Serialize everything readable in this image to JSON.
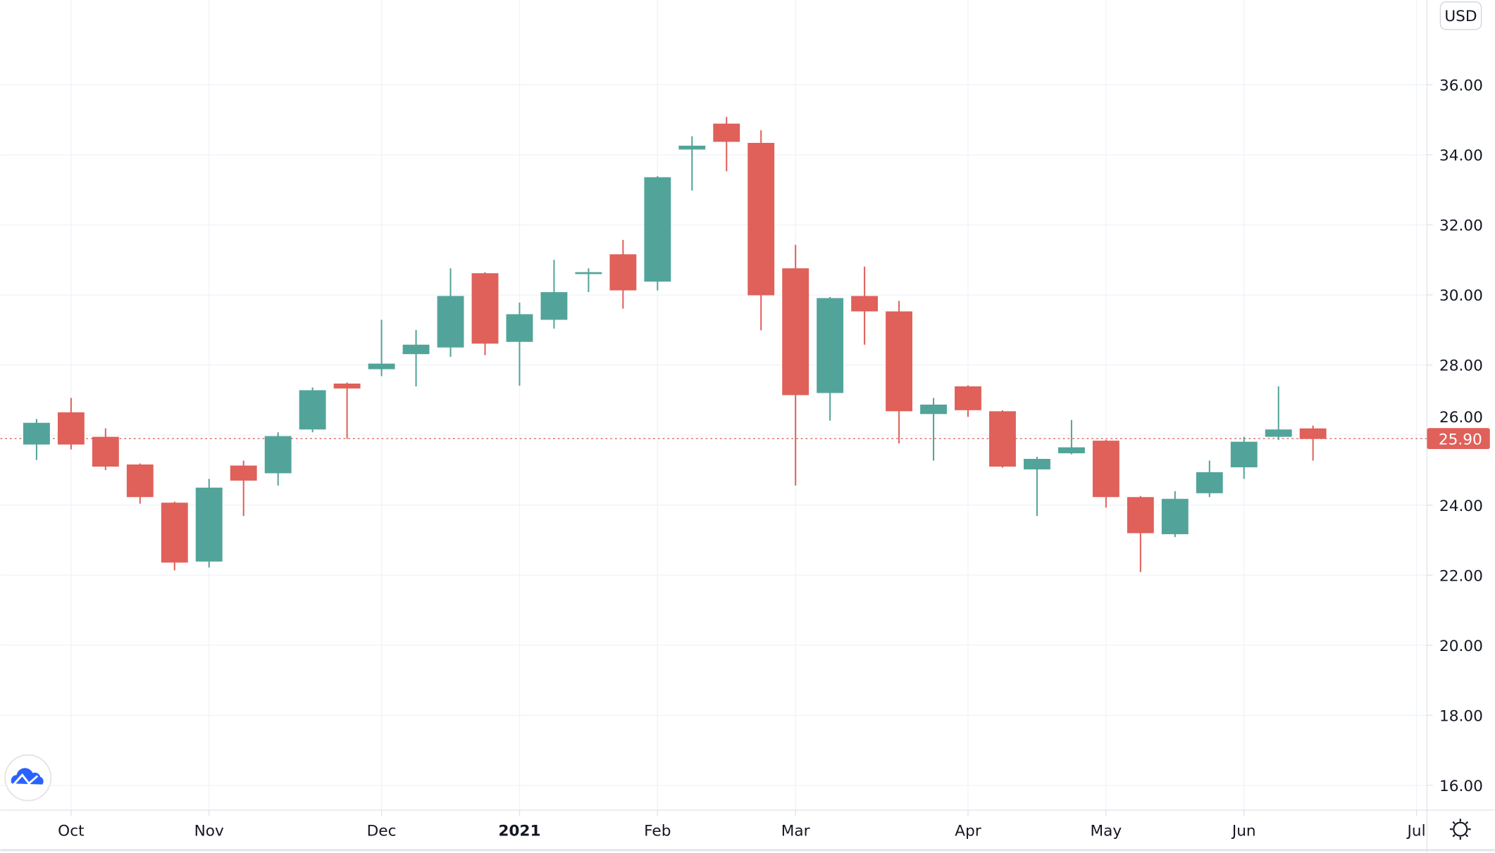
{
  "currency_button": "USD",
  "current_price_label": "25.90",
  "logo_icon": "tradingview-cloud-logo-icon",
  "settings_icon": "gear-icon",
  "colors": {
    "up": "#52a49a",
    "down": "#e0605a",
    "grid": "#f0f3fa",
    "price_line": "#e0605a"
  },
  "chart_data": {
    "type": "candlestick",
    "interval": "weekly",
    "current_price": 25.9,
    "ylim": [
      15,
      38
    ],
    "y_ticks": [
      "36.00",
      "34.00",
      "32.00",
      "30.00",
      "28.00",
      "26.00",
      "24.00",
      "22.00",
      "20.00",
      "18.00",
      "16.00"
    ],
    "x_ticks": [
      {
        "label": "Oct",
        "date": "2020-10-05",
        "bold": false
      },
      {
        "label": "Nov",
        "date": "2020-11-02",
        "bold": false
      },
      {
        "label": "Dec",
        "date": "2020-12-07",
        "bold": false
      },
      {
        "label": "2021",
        "date": "2021-01-04",
        "bold": true
      },
      {
        "label": "Feb",
        "date": "2021-02-01",
        "bold": false
      },
      {
        "label": "Mar",
        "date": "2021-03-01",
        "bold": false
      },
      {
        "label": "Apr",
        "date": "2021-04-05",
        "bold": false
      },
      {
        "label": "May",
        "date": "2021-05-03",
        "bold": false
      },
      {
        "label": "Jun",
        "date": "2021-05-31",
        "bold": false
      },
      {
        "label": "Jul",
        "date": "2021-07-05",
        "bold": false
      }
    ],
    "candles": [
      {
        "date": "2020-09-28",
        "o": 25.73,
        "h": 26.46,
        "l": 25.29,
        "c": 26.35
      },
      {
        "date": "2020-10-05",
        "o": 26.65,
        "h": 27.06,
        "l": 25.59,
        "c": 25.73
      },
      {
        "date": "2020-10-12",
        "o": 25.95,
        "h": 26.19,
        "l": 25.0,
        "c": 25.1
      },
      {
        "date": "2020-10-19",
        "o": 25.16,
        "h": 25.19,
        "l": 24.04,
        "c": 24.23
      },
      {
        "date": "2020-10-26",
        "o": 24.07,
        "h": 24.1,
        "l": 22.14,
        "c": 22.36
      },
      {
        "date": "2020-11-02",
        "o": 22.39,
        "h": 24.75,
        "l": 22.22,
        "c": 24.5
      },
      {
        "date": "2020-11-09",
        "o": 25.13,
        "h": 25.27,
        "l": 23.69,
        "c": 24.7
      },
      {
        "date": "2020-11-16",
        "o": 24.91,
        "h": 26.08,
        "l": 24.56,
        "c": 25.97
      },
      {
        "date": "2020-11-23",
        "o": 26.16,
        "h": 27.36,
        "l": 26.08,
        "c": 27.28
      },
      {
        "date": "2020-11-30",
        "o": 27.47,
        "h": 27.5,
        "l": 25.89,
        "c": 27.33
      },
      {
        "date": "2020-12-07",
        "o": 27.88,
        "h": 29.29,
        "l": 27.68,
        "c": 28.04
      },
      {
        "date": "2020-12-14",
        "o": 28.31,
        "h": 29.0,
        "l": 27.39,
        "c": 28.58
      },
      {
        "date": "2020-12-21",
        "o": 28.5,
        "h": 30.76,
        "l": 28.23,
        "c": 29.97
      },
      {
        "date": "2020-12-28",
        "o": 30.62,
        "h": 30.65,
        "l": 28.28,
        "c": 28.61
      },
      {
        "date": "2021-01-04",
        "o": 28.66,
        "h": 29.78,
        "l": 27.41,
        "c": 29.45
      },
      {
        "date": "2021-01-11",
        "o": 29.29,
        "h": 31.0,
        "l": 29.04,
        "c": 30.08
      },
      {
        "date": "2021-01-18",
        "o": 30.62,
        "h": 30.76,
        "l": 30.08,
        "c": 30.65
      },
      {
        "date": "2021-01-25",
        "o": 31.16,
        "h": 31.57,
        "l": 29.61,
        "c": 30.13
      },
      {
        "date": "2021-02-01",
        "o": 30.38,
        "h": 33.39,
        "l": 30.13,
        "c": 33.36
      },
      {
        "date": "2021-02-08",
        "o": 34.15,
        "h": 34.53,
        "l": 32.98,
        "c": 34.26
      },
      {
        "date": "2021-02-15",
        "o": 34.89,
        "h": 35.08,
        "l": 33.53,
        "c": 34.37
      },
      {
        "date": "2021-02-22",
        "o": 34.34,
        "h": 34.7,
        "l": 28.99,
        "c": 29.99
      },
      {
        "date": "2021-03-01",
        "o": 30.76,
        "h": 31.43,
        "l": 24.56,
        "c": 27.14
      },
      {
        "date": "2021-03-08",
        "o": 27.2,
        "h": 29.94,
        "l": 26.41,
        "c": 29.91
      },
      {
        "date": "2021-03-15",
        "o": 29.97,
        "h": 30.81,
        "l": 28.58,
        "c": 29.53
      },
      {
        "date": "2021-03-22",
        "o": 29.53,
        "h": 29.83,
        "l": 25.76,
        "c": 26.68
      },
      {
        "date": "2021-03-29",
        "o": 26.6,
        "h": 27.06,
        "l": 25.27,
        "c": 26.87
      },
      {
        "date": "2021-04-05",
        "o": 27.39,
        "h": 27.42,
        "l": 26.52,
        "c": 26.71
      },
      {
        "date": "2021-04-12",
        "o": 26.68,
        "h": 26.71,
        "l": 25.07,
        "c": 25.1
      },
      {
        "date": "2021-04-19",
        "o": 25.02,
        "h": 25.38,
        "l": 23.69,
        "c": 25.32
      },
      {
        "date": "2021-04-26",
        "o": 25.48,
        "h": 26.43,
        "l": 25.45,
        "c": 25.65
      },
      {
        "date": "2021-05-03",
        "o": 25.84,
        "h": 25.87,
        "l": 23.93,
        "c": 24.23
      },
      {
        "date": "2021-05-10",
        "o": 24.23,
        "h": 24.26,
        "l": 22.09,
        "c": 23.2
      },
      {
        "date": "2021-05-17",
        "o": 23.17,
        "h": 24.4,
        "l": 23.09,
        "c": 24.18
      },
      {
        "date": "2021-05-24",
        "o": 24.34,
        "h": 25.27,
        "l": 24.23,
        "c": 24.94
      },
      {
        "date": "2021-05-31",
        "o": 25.08,
        "h": 25.95,
        "l": 24.75,
        "c": 25.81
      },
      {
        "date": "2021-06-07",
        "o": 25.95,
        "h": 27.39,
        "l": 25.86,
        "c": 26.16
      },
      {
        "date": "2021-06-14",
        "o": 26.19,
        "h": 26.27,
        "l": 25.27,
        "c": 25.89
      }
    ]
  }
}
